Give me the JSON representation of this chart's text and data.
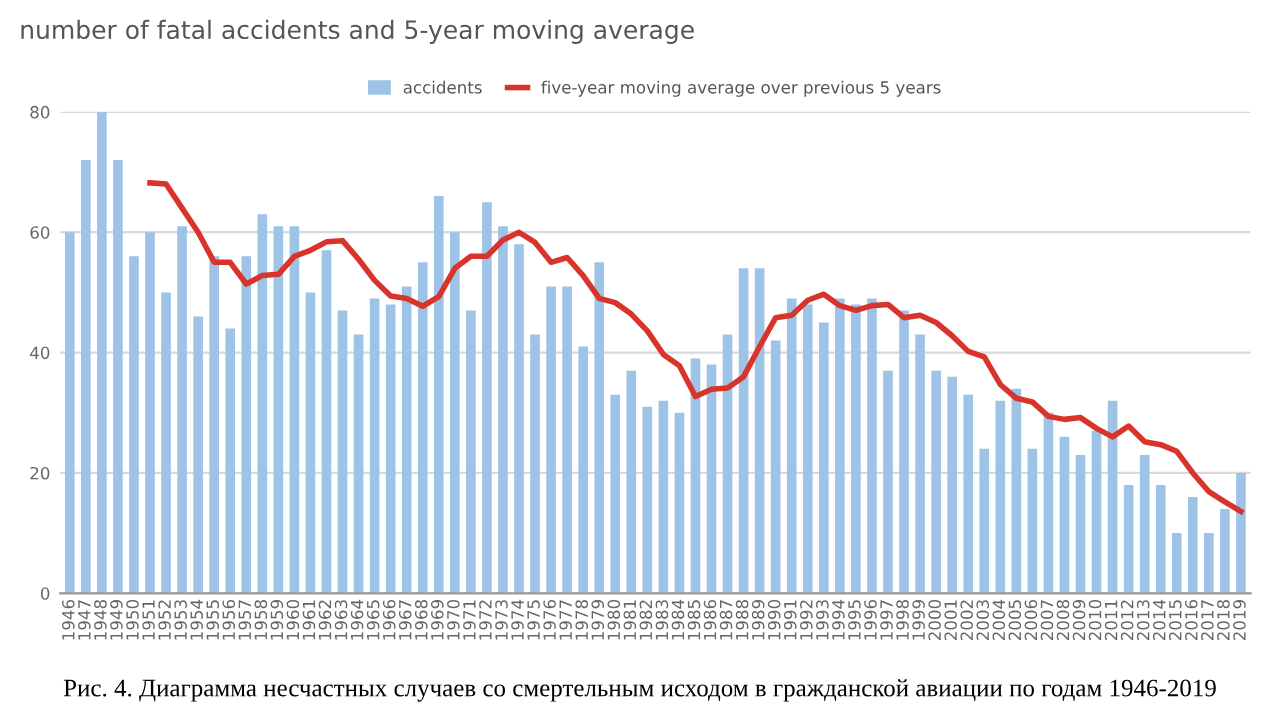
{
  "chart_data": {
    "type": "bar",
    "title": "number of fatal accidents and 5-year moving average",
    "categories": [
      "1946",
      "1947",
      "1948",
      "1949",
      "1950",
      "1951",
      "1952",
      "1953",
      "1954",
      "1955",
      "1956",
      "1957",
      "1958",
      "1959",
      "1960",
      "1961",
      "1962",
      "1963",
      "1964",
      "1965",
      "1966",
      "1967",
      "1968",
      "1969",
      "1970",
      "1971",
      "1972",
      "1973",
      "1974",
      "1975",
      "1976",
      "1977",
      "1978",
      "1979",
      "1980",
      "1981",
      "1982",
      "1983",
      "1984",
      "1985",
      "1986",
      "1987",
      "1988",
      "1989",
      "1990",
      "1991",
      "1992",
      "1993",
      "1994",
      "1995",
      "1996",
      "1997",
      "1998",
      "1999",
      "2000",
      "2001",
      "2002",
      "2003",
      "2004",
      "2005",
      "2006",
      "2007",
      "2008",
      "2009",
      "2010",
      "2011",
      "2012",
      "2013",
      "2014",
      "2015",
      "2016",
      "2017",
      "2018",
      "2019"
    ],
    "series": [
      {
        "name": "accidents",
        "color": "#9dc3e6",
        "values": [
          60,
          72,
          80,
          72,
          56,
          60,
          50,
          61,
          46,
          56,
          44,
          56,
          63,
          61,
          61,
          50,
          57,
          47,
          43,
          49,
          48,
          51,
          55,
          66,
          60,
          47,
          65,
          61,
          58,
          43,
          51,
          51,
          41,
          55,
          33,
          37,
          31,
          32,
          30,
          39,
          38,
          43,
          54,
          54,
          42,
          49,
          48,
          45,
          49,
          48,
          49,
          37,
          47,
          43,
          37,
          36,
          33,
          24,
          32,
          34,
          24,
          30,
          26,
          23,
          27,
          32,
          18,
          23,
          18,
          10,
          16,
          10,
          14,
          20
        ]
      },
      {
        "name": "five-year moving average over previous 5 years",
        "type": "line",
        "color": "#d9342b",
        "values": [
          null,
          null,
          null,
          null,
          null,
          68.2,
          68,
          64,
          60,
          55,
          55,
          51.4,
          52.8,
          53,
          56,
          57,
          58.4,
          58.6,
          55.5,
          52,
          49.4,
          49,
          47.7,
          49.3,
          54,
          56,
          56,
          58.7,
          60,
          58.3,
          55,
          55.8,
          52.8,
          49,
          48.3,
          46.4,
          43.6,
          39.7,
          37.8,
          32.7,
          33.9,
          34.1,
          36,
          41,
          45.8,
          46.2,
          48.7,
          49.7,
          47.8,
          47,
          47.8,
          48,
          45.8,
          46.2,
          45,
          42.8,
          40.2,
          39.3,
          34.7,
          32.4,
          31.8,
          29.4,
          28.9,
          29.2,
          27.4,
          26,
          27.8,
          25.2,
          24.7,
          23.6,
          20,
          16.9,
          15.2,
          13.6
        ]
      }
    ],
    "ylim": [
      0,
      80
    ],
    "yticks": [
      0,
      20,
      40,
      60,
      80
    ],
    "grid": "y",
    "legend": "top",
    "annotations": [
      "Рис. 4. Диаграмма несчастных случаев со смертельным исходом в гражданской авиации по годам 1946-2019"
    ]
  }
}
